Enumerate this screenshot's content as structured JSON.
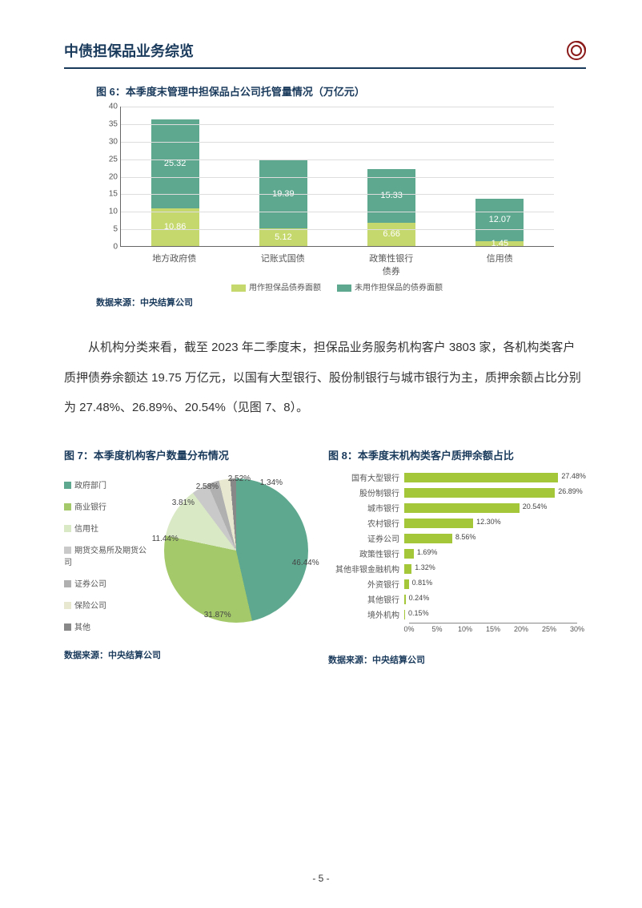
{
  "header": {
    "title": "中债担保品业务综览"
  },
  "chart6": {
    "type": "stacked-bar",
    "title": "图 6：本季度末管理中担保品占公司托管量情况（万亿元）",
    "categories": [
      "地方政府债",
      "记账式国债",
      "政策性银行债券",
      "信用债"
    ],
    "series": [
      {
        "name": "用作担保品债券面额",
        "color": "#c5d86d",
        "values": [
          10.86,
          5.12,
          6.66,
          1.45
        ]
      },
      {
        "name": "未用作担保品的债券面额",
        "color": "#5ea88f",
        "values": [
          25.32,
          19.39,
          15.33,
          12.07
        ]
      }
    ],
    "ymax": 40,
    "ytick_step": 5,
    "grid_color": "#dddddd",
    "axis_color": "#666666",
    "label_font_size": 10,
    "source": "数据来源：中央结算公司"
  },
  "body_paragraph": "从机构分类来看，截至 2023 年二季度末，担保品业务服务机构客户 3803 家，各机构类客户质押债券余额达 19.75 万亿元，以国有大型银行、股份制银行与城市银行为主，质押余额占比分别为 27.48%、26.89%、20.54%（见图 7、8）。",
  "chart7": {
    "type": "pie",
    "title": "图 7：本季度机构客户数量分布情况",
    "slices": [
      {
        "label": "政府部门",
        "value": 46.44,
        "color": "#5ea88f"
      },
      {
        "label": "商业银行",
        "value": 31.87,
        "color": "#a4c96a"
      },
      {
        "label": "信用社",
        "value": 11.44,
        "color": "#d9e8c5"
      },
      {
        "label": "期货交易所及期货公司",
        "value": 3.81,
        "color": "#c9c9c9"
      },
      {
        "label": "证券公司",
        "value": 2.58,
        "color": "#b0b0b0"
      },
      {
        "label": "保险公司",
        "value": 2.52,
        "color": "#e8e8d0"
      },
      {
        "label": "其他",
        "value": 1.34,
        "color": "#888888"
      }
    ],
    "source": "数据来源：中央结算公司"
  },
  "chart8": {
    "type": "bar-horizontal",
    "title": "图 8：本季度末机构类客户质押余额占比",
    "bar_color": "#a4c639",
    "items": [
      {
        "label": "国有大型银行",
        "value": 27.48
      },
      {
        "label": "股份制银行",
        "value": 26.89
      },
      {
        "label": "城市银行",
        "value": 20.54
      },
      {
        "label": "农村银行",
        "value": 12.3
      },
      {
        "label": "证券公司",
        "value": 8.56
      },
      {
        "label": "政策性银行",
        "value": 1.69
      },
      {
        "label": "其他非银金融机构",
        "value": 1.32
      },
      {
        "label": "外资银行",
        "value": 0.81
      },
      {
        "label": "其他银行",
        "value": 0.24
      },
      {
        "label": "境外机构",
        "value": 0.15
      }
    ],
    "xmax": 30,
    "xtick_step": 5,
    "source": "数据来源：中央结算公司"
  },
  "page_number": "- 5 -"
}
